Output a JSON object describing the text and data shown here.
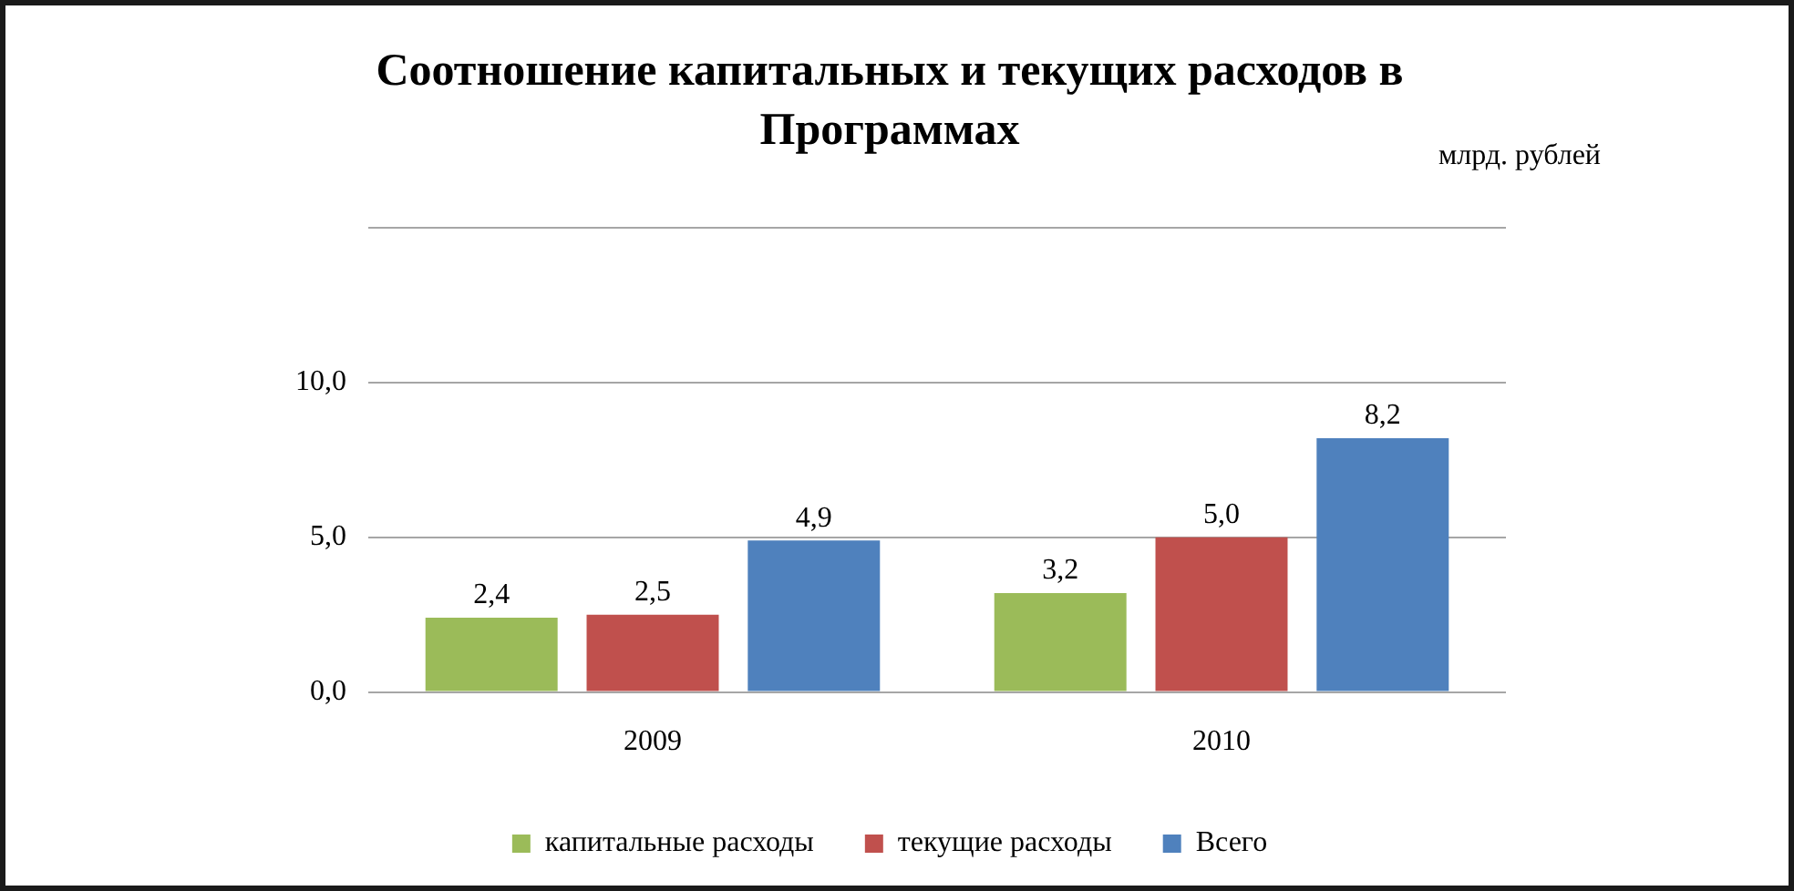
{
  "chart_data": {
    "type": "bar",
    "title": "Соотношение капитальных и текущих расходов в Программах",
    "annotations": [
      "млрд. рублей"
    ],
    "categories": [
      "2009",
      "2010"
    ],
    "series": [
      {
        "name": "капитальные расходы",
        "color": "#9bbb59",
        "values": [
          2.4,
          3.2
        ],
        "value_labels": [
          "2,4",
          "3,2"
        ]
      },
      {
        "name": "текущие расходы",
        "color": "#c0504d",
        "values": [
          2.5,
          5.0
        ],
        "value_labels": [
          "2,5",
          "5,0"
        ]
      },
      {
        "name": "Всего",
        "color": "#4f81bd",
        "values": [
          4.9,
          8.2
        ],
        "value_labels": [
          "4,9",
          "8,2"
        ]
      }
    ],
    "ylim": [
      0,
      15
    ],
    "yticks": [
      {
        "value": 0,
        "label": "0,0"
      },
      {
        "value": 5,
        "label": "5,0"
      },
      {
        "value": 10,
        "label": "10,0"
      },
      {
        "value": 15,
        "label": null
      }
    ],
    "grid": "y",
    "legend": "bottom"
  }
}
